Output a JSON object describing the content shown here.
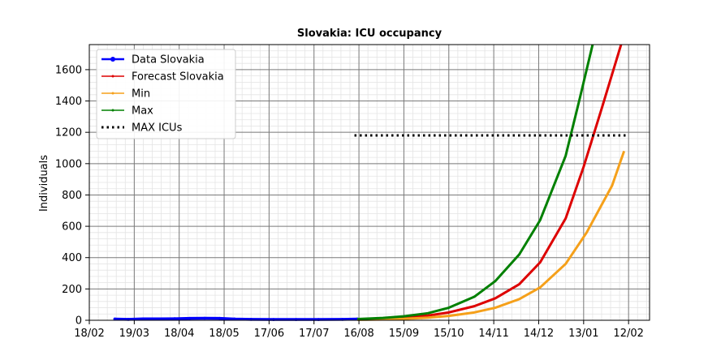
{
  "chart_data": {
    "type": "line",
    "title": "Slovakia: ICU occupancy",
    "xlabel": "",
    "ylabel": "Individuals",
    "x_tick_labels": [
      "18/02",
      "19/03",
      "18/04",
      "18/05",
      "17/06",
      "17/07",
      "16/08",
      "15/09",
      "15/10",
      "14/11",
      "14/12",
      "13/01",
      "12/02"
    ],
    "y_tick_labels": [
      "0",
      "200",
      "400",
      "600",
      "800",
      "1000",
      "1200",
      "1400",
      "1600"
    ],
    "xlim": [
      "2020-02-18",
      "2021-02-26"
    ],
    "ylim": [
      0,
      1760
    ],
    "grid": true,
    "legend_position": "top-left",
    "series": [
      {
        "name": "Data Slovakia",
        "color": "#0000ff",
        "style": "line-with-markers",
        "x": [
          "2020-03-06",
          "2020-03-15",
          "2020-03-25",
          "2020-04-05",
          "2020-04-15",
          "2020-04-25",
          "2020-05-05",
          "2020-05-15",
          "2020-05-25",
          "2020-06-05",
          "2020-06-20",
          "2020-07-05",
          "2020-07-20",
          "2020-08-05",
          "2020-08-15"
        ],
        "y": [
          8,
          6,
          9,
          9,
          10,
          12,
          13,
          12,
          8,
          6,
          5,
          5,
          5,
          6,
          8
        ]
      },
      {
        "name": "Forecast Slovakia",
        "color": "#dd0000",
        "style": "line",
        "x": [
          "2020-08-15",
          "2020-09-01",
          "2020-09-15",
          "2020-10-01",
          "2020-10-15",
          "2020-11-01",
          "2020-11-15",
          "2020-12-01",
          "2020-12-15",
          "2021-01-01",
          "2021-01-13",
          "2021-01-25",
          "2021-02-07"
        ],
        "y": [
          5,
          10,
          18,
          30,
          50,
          90,
          140,
          230,
          370,
          650,
          980,
          1350,
          1760
        ]
      },
      {
        "name": "Min",
        "color": "#f5a01a",
        "style": "line",
        "x": [
          "2020-08-15",
          "2020-09-01",
          "2020-09-15",
          "2020-10-01",
          "2020-10-15",
          "2020-11-01",
          "2020-11-15",
          "2020-12-01",
          "2020-12-15",
          "2021-01-01",
          "2021-01-15",
          "2021-02-01",
          "2021-02-09"
        ],
        "y": [
          3,
          5,
          9,
          17,
          28,
          50,
          80,
          135,
          210,
          360,
          560,
          860,
          1080
        ]
      },
      {
        "name": "Max",
        "color": "#008000",
        "style": "line",
        "x": [
          "2020-08-15",
          "2020-09-01",
          "2020-09-15",
          "2020-10-01",
          "2020-10-15",
          "2020-11-01",
          "2020-11-15",
          "2020-12-01",
          "2020-12-15",
          "2021-01-01",
          "2021-01-10",
          "2021-01-19"
        ],
        "y": [
          8,
          15,
          25,
          45,
          80,
          150,
          250,
          420,
          640,
          1050,
          1400,
          1760
        ]
      },
      {
        "name": "MAX ICUs",
        "color": "#000000",
        "style": "dotted",
        "x": [
          "2020-08-13",
          "2021-02-10"
        ],
        "y": [
          1180,
          1180
        ]
      }
    ]
  }
}
